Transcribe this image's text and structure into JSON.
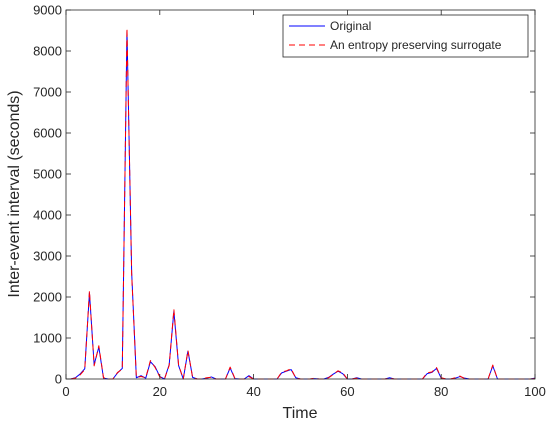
{
  "chart_data": {
    "type": "line",
    "title": "",
    "xlabel": "Time",
    "ylabel": "Inter-event interval (seconds)",
    "xlim": [
      0,
      100
    ],
    "ylim": [
      0,
      9000
    ],
    "xticks": [
      "0",
      "20",
      "40",
      "60",
      "80",
      "100"
    ],
    "yticks": [
      "0",
      "1000",
      "2000",
      "3000",
      "4000",
      "5000",
      "6000",
      "7000",
      "8000",
      "9000"
    ],
    "grid": false,
    "legend_position": "top-right",
    "series": [
      {
        "name": "Original",
        "color": "#0000ff",
        "style": "solid",
        "x": [
          1,
          2,
          3,
          4,
          5,
          6,
          7,
          8,
          9,
          10,
          11,
          12,
          13,
          14,
          15,
          16,
          17,
          18,
          19,
          20,
          21,
          22,
          23,
          24,
          25,
          26,
          27,
          28,
          29,
          30,
          31,
          32,
          33,
          34,
          35,
          36,
          37,
          38,
          39,
          40,
          41,
          42,
          43,
          44,
          45,
          46,
          47,
          48,
          49,
          50,
          51,
          52,
          53,
          54,
          55,
          56,
          57,
          58,
          59,
          60,
          61,
          62,
          63,
          64,
          65,
          66,
          67,
          68,
          69,
          70,
          71,
          72,
          73,
          74,
          75,
          76,
          77,
          78,
          79,
          80,
          81,
          82,
          83,
          84,
          85,
          86,
          87,
          88,
          89,
          90,
          91,
          92,
          93,
          94,
          95,
          96,
          97,
          98,
          99,
          100
        ],
        "values": [
          0,
          30,
          120,
          250,
          2100,
          350,
          780,
          20,
          0,
          0,
          150,
          260,
          8500,
          2600,
          30,
          80,
          20,
          420,
          300,
          60,
          0,
          350,
          1650,
          330,
          0,
          680,
          40,
          0,
          0,
          20,
          50,
          0,
          0,
          0,
          270,
          10,
          0,
          0,
          80,
          0,
          0,
          0,
          0,
          0,
          0,
          150,
          190,
          230,
          30,
          0,
          0,
          0,
          10,
          0,
          0,
          40,
          120,
          190,
          130,
          0,
          0,
          30,
          0,
          0,
          0,
          0,
          0,
          0,
          30,
          0,
          0,
          0,
          0,
          0,
          0,
          0,
          130,
          160,
          260,
          20,
          0,
          0,
          20,
          60,
          20,
          0,
          0,
          0,
          0,
          0,
          320,
          0,
          0,
          0,
          0,
          0,
          0,
          0,
          0,
          20
        ]
      },
      {
        "name": "An entropy preserving surrogate",
        "color": "#ff0000",
        "style": "dashed",
        "x": [
          1,
          2,
          3,
          4,
          5,
          6,
          7,
          8,
          9,
          10,
          11,
          12,
          13,
          14,
          15,
          16,
          17,
          18,
          19,
          20,
          21,
          22,
          23,
          24,
          25,
          26,
          27,
          28,
          29,
          30,
          31,
          32,
          33,
          34,
          35,
          36,
          37,
          38,
          39,
          40,
          41,
          42,
          43,
          44,
          45,
          46,
          47,
          48,
          49,
          50,
          51,
          52,
          53,
          54,
          55,
          56,
          57,
          58,
          59,
          60,
          61,
          62,
          63,
          64,
          65,
          66,
          67,
          68,
          69,
          70,
          71,
          72,
          73,
          74,
          75,
          76,
          77,
          78,
          79,
          80,
          81,
          82,
          83,
          84,
          85,
          86,
          87,
          88,
          89,
          90,
          91,
          92,
          93,
          94,
          95,
          96,
          97,
          98,
          99,
          100
        ],
        "values": [
          0,
          20,
          100,
          230,
          2150,
          320,
          810,
          30,
          0,
          0,
          160,
          240,
          8550,
          2550,
          40,
          60,
          30,
          450,
          280,
          50,
          0,
          330,
          1700,
          350,
          0,
          700,
          30,
          0,
          0,
          30,
          40,
          0,
          0,
          0,
          290,
          20,
          0,
          0,
          60,
          0,
          0,
          0,
          0,
          0,
          0,
          170,
          200,
          250,
          20,
          0,
          0,
          0,
          20,
          0,
          0,
          30,
          110,
          200,
          150,
          0,
          0,
          20,
          0,
          0,
          0,
          0,
          0,
          0,
          20,
          0,
          0,
          0,
          0,
          0,
          0,
          0,
          150,
          170,
          280,
          30,
          0,
          0,
          30,
          70,
          10,
          0,
          0,
          0,
          0,
          0,
          340,
          0,
          0,
          0,
          0,
          0,
          0,
          0,
          0,
          10
        ]
      }
    ]
  }
}
